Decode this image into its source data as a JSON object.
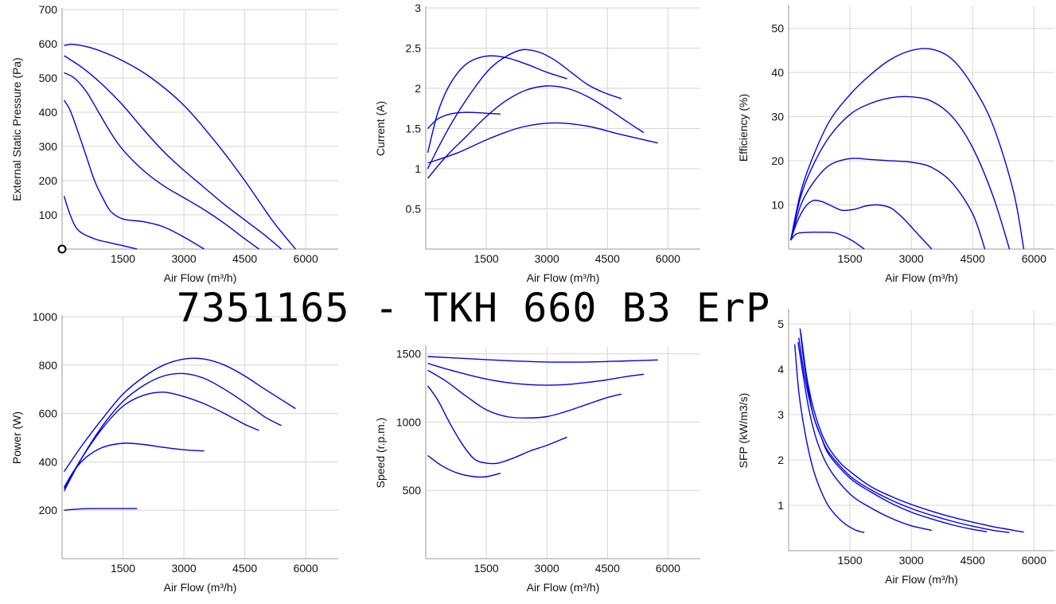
{
  "title": "7351165 - TKH 660 B3 ErP",
  "colors": {
    "curve": "#0000ee",
    "grid": "#d6d6d6",
    "axis": "#9a9a9a"
  },
  "chart_data": [
    {
      "id": "pressure",
      "type": "line",
      "xlabel": "Air Flow (m³/h)",
      "ylabel": "External Static Pressure (Pa)",
      "xlim": [
        0,
        6800
      ],
      "ylim": [
        0,
        700
      ],
      "xticks": [
        1500,
        3000,
        4500,
        6000
      ],
      "yticks": [
        100,
        200,
        300,
        400,
        500,
        600,
        700
      ],
      "series": [
        {
          "x": [
            50,
            300,
            800,
            1500,
            2200,
            3000,
            3800,
            4500,
            5200,
            5750
          ],
          "y": [
            595,
            598,
            585,
            550,
            500,
            420,
            310,
            200,
            80,
            0
          ]
        },
        {
          "x": [
            50,
            500,
            1000,
            1500,
            2000,
            2500,
            3000,
            3500,
            4000,
            4500,
            5000,
            5400
          ],
          "y": [
            565,
            530,
            480,
            420,
            350,
            285,
            230,
            180,
            130,
            85,
            40,
            0
          ]
        },
        {
          "x": [
            50,
            300,
            600,
            900,
            1200,
            1500,
            2000,
            2500,
            3000,
            3500,
            4000,
            4500,
            4850
          ],
          "y": [
            515,
            500,
            460,
            400,
            340,
            290,
            230,
            185,
            150,
            115,
            75,
            30,
            0
          ]
        },
        {
          "x": [
            50,
            200,
            400,
            600,
            800,
            1000,
            1200,
            1500,
            2000,
            2500,
            3000,
            3500
          ],
          "y": [
            435,
            405,
            340,
            270,
            200,
            150,
            110,
            88,
            80,
            65,
            35,
            0
          ]
        },
        {
          "x": [
            50,
            200,
            400,
            800,
            1200,
            1500,
            1850
          ],
          "y": [
            155,
            100,
            55,
            30,
            18,
            10,
            0
          ]
        }
      ]
    },
    {
      "id": "current",
      "type": "line",
      "xlabel": "Air Flow (m³/h)",
      "ylabel": "Current (A)",
      "xlim": [
        0,
        6800
      ],
      "ylim": [
        0,
        3
      ],
      "xticks": [
        1500,
        3000,
        4500,
        6000
      ],
      "yticks": [
        0.5,
        1,
        1.5,
        2,
        2.5,
        3
      ],
      "series": [
        {
          "x": [
            50,
            300,
            600,
            900,
            1200,
            1500,
            1850
          ],
          "y": [
            1.5,
            1.62,
            1.68,
            1.7,
            1.7,
            1.69,
            1.68
          ]
        },
        {
          "x": [
            50,
            300,
            600,
            1000,
            1500,
            2000,
            2500,
            3000,
            3500
          ],
          "y": [
            1.2,
            1.7,
            2.05,
            2.3,
            2.4,
            2.38,
            2.3,
            2.2,
            2.12
          ]
        },
        {
          "x": [
            50,
            400,
            800,
            1200,
            1600,
            2000,
            2400,
            2800,
            3200,
            3600,
            4000,
            4400,
            4850
          ],
          "y": [
            1.0,
            1.35,
            1.7,
            2.0,
            2.25,
            2.4,
            2.48,
            2.45,
            2.35,
            2.2,
            2.05,
            1.95,
            1.87
          ]
        },
        {
          "x": [
            50,
            500,
            1000,
            1500,
            2000,
            2500,
            3000,
            3500,
            4000,
            4500,
            5000,
            5400
          ],
          "y": [
            0.88,
            1.15,
            1.4,
            1.65,
            1.85,
            1.98,
            2.03,
            2.0,
            1.9,
            1.75,
            1.58,
            1.45
          ]
        },
        {
          "x": [
            50,
            800,
            1600,
            2400,
            3200,
            4000,
            4800,
            5750
          ],
          "y": [
            1.07,
            1.2,
            1.38,
            1.52,
            1.57,
            1.53,
            1.43,
            1.32
          ]
        }
      ]
    },
    {
      "id": "efficiency",
      "type": "line",
      "xlabel": "Air Flow (m³/h)",
      "ylabel": "Efficiency (%)",
      "xlim": [
        0,
        6500
      ],
      "ylim": [
        0,
        55
      ],
      "xticks": [
        1500,
        3000,
        4500,
        6000
      ],
      "yticks": [
        10,
        20,
        30,
        40,
        50
      ],
      "series": [
        {
          "x": [
            50,
            200,
            500,
            800,
            1000,
            1200,
            1500,
            1700,
            1850
          ],
          "y": [
            2,
            3.5,
            3.8,
            3.8,
            3.8,
            3.5,
            2.2,
            1,
            0
          ]
        },
        {
          "x": [
            50,
            200,
            400,
            600,
            800,
            1000,
            1300,
            1600,
            1900,
            2200,
            2500,
            2800,
            3200,
            3500
          ],
          "y": [
            2,
            6,
            9.5,
            11,
            10.8,
            10,
            8.8,
            9,
            9.8,
            10,
            9.3,
            7,
            3,
            0
          ]
        },
        {
          "x": [
            50,
            300,
            600,
            1000,
            1500,
            2000,
            2500,
            3000,
            3500,
            4000,
            4500,
            4800
          ],
          "y": [
            2,
            10,
            15,
            19,
            20.5,
            20.3,
            20,
            19.7,
            18.5,
            15,
            8,
            0
          ]
        },
        {
          "x": [
            50,
            300,
            600,
            1000,
            1500,
            2000,
            2500,
            3000,
            3500,
            4000,
            4500,
            5000,
            5400
          ],
          "y": [
            2,
            12,
            19,
            25.5,
            30.5,
            33,
            34.3,
            34.5,
            33.5,
            30,
            23,
            12,
            0
          ]
        },
        {
          "x": [
            50,
            300,
            600,
            1000,
            1500,
            2000,
            2500,
            3000,
            3500,
            4000,
            4500,
            5000,
            5500,
            5750
          ],
          "y": [
            2,
            13,
            21,
            29,
            35,
            39.5,
            43,
            45,
            45.3,
            43,
            37,
            28,
            13,
            0
          ]
        }
      ]
    },
    {
      "id": "power",
      "type": "line",
      "xlabel": "Air Flow (m³/h)",
      "ylabel": "Power (W)",
      "xlim": [
        0,
        6800
      ],
      "ylim": [
        0,
        1000
      ],
      "xticks": [
        1500,
        3000,
        4500,
        6000
      ],
      "yticks": [
        200,
        400,
        600,
        800,
        1000
      ],
      "series": [
        {
          "x": [
            50,
            400,
            800,
            1200,
            1500,
            1850
          ],
          "y": [
            200,
            205,
            207,
            207,
            207,
            207
          ]
        },
        {
          "x": [
            50,
            300,
            600,
            1000,
            1500,
            2000,
            2500,
            3000,
            3500
          ],
          "y": [
            295,
            365,
            420,
            460,
            477,
            472,
            460,
            450,
            445
          ]
        },
        {
          "x": [
            50,
            500,
            1000,
            1500,
            2000,
            2500,
            3000,
            3500,
            4000,
            4500,
            4850
          ],
          "y": [
            290,
            420,
            540,
            630,
            675,
            688,
            670,
            640,
            600,
            555,
            530
          ]
        },
        {
          "x": [
            50,
            500,
            1000,
            1500,
            2000,
            2500,
            3000,
            3500,
            4000,
            4500,
            5000,
            5400
          ],
          "y": [
            280,
            420,
            550,
            650,
            715,
            755,
            765,
            745,
            700,
            645,
            585,
            550
          ]
        },
        {
          "x": [
            50,
            500,
            1000,
            1500,
            2000,
            2500,
            3000,
            3500,
            4000,
            4500,
            5000,
            5750
          ],
          "y": [
            360,
            470,
            580,
            680,
            750,
            800,
            825,
            825,
            800,
            755,
            700,
            620
          ]
        }
      ]
    },
    {
      "id": "speed",
      "type": "line",
      "xlabel": "Air Flow (m³/h)",
      "ylabel": "Speed (r.p.m.)",
      "xlim": [
        0,
        6800
      ],
      "ylim": [
        0,
        1550
      ],
      "xticks": [
        1500,
        3000,
        4500,
        6000
      ],
      "yticks": [
        500,
        1000,
        1500
      ],
      "series": [
        {
          "x": [
            50,
            400,
            800,
            1200,
            1500,
            1850
          ],
          "y": [
            755,
            680,
            625,
            600,
            600,
            625
          ]
        },
        {
          "x": [
            50,
            300,
            600,
            900,
            1200,
            1500,
            1800,
            2200,
            2600,
            3000,
            3500
          ],
          "y": [
            1265,
            1160,
            990,
            840,
            730,
            700,
            700,
            740,
            790,
            830,
            890
          ]
        },
        {
          "x": [
            50,
            500,
            1000,
            1500,
            2000,
            2500,
            3000,
            3500,
            4000,
            4500,
            4850
          ],
          "y": [
            1380,
            1300,
            1190,
            1090,
            1040,
            1030,
            1040,
            1080,
            1130,
            1180,
            1205
          ]
        },
        {
          "x": [
            50,
            500,
            1000,
            1500,
            2000,
            2500,
            3000,
            3500,
            4000,
            4500,
            5000,
            5400
          ],
          "y": [
            1430,
            1390,
            1350,
            1315,
            1290,
            1275,
            1270,
            1275,
            1290,
            1310,
            1335,
            1350
          ]
        },
        {
          "x": [
            50,
            1000,
            2000,
            3000,
            4000,
            5000,
            5750
          ],
          "y": [
            1480,
            1465,
            1450,
            1440,
            1440,
            1448,
            1455
          ]
        }
      ]
    },
    {
      "id": "sfp",
      "type": "line",
      "xlabel": "Air Flow (m³/h)",
      "ylabel": "SFP (kW/m3/s)",
      "xlim": [
        0,
        6500
      ],
      "ylim": [
        0,
        5.3
      ],
      "xticks": [
        1500,
        3000,
        4500,
        6000
      ],
      "yticks": [
        1,
        2,
        3,
        4,
        5
      ],
      "series": [
        {
          "x": [
            150,
            250,
            400,
            600,
            800,
            1000,
            1300,
            1600,
            1850
          ],
          "y": [
            4.55,
            3.5,
            2.6,
            1.8,
            1.3,
            0.95,
            0.65,
            0.47,
            0.4
          ]
        },
        {
          "x": [
            230,
            350,
            500,
            700,
            1000,
            1500,
            2000,
            2500,
            3000,
            3500
          ],
          "y": [
            4.6,
            3.9,
            3.1,
            2.4,
            1.8,
            1.25,
            0.95,
            0.72,
            0.55,
            0.45
          ]
        },
        {
          "x": [
            280,
            400,
            600,
            800,
            1000,
            1500,
            2000,
            2500,
            3000,
            3500,
            4000,
            4500,
            4850
          ],
          "y": [
            4.9,
            4.0,
            3.0,
            2.5,
            2.1,
            1.6,
            1.3,
            1.05,
            0.85,
            0.7,
            0.57,
            0.47,
            0.42
          ]
        },
        {
          "x": [
            250,
            400,
            600,
            800,
            1000,
            1500,
            2000,
            2500,
            3000,
            3500,
            4000,
            4500,
            5000,
            5400
          ],
          "y": [
            4.7,
            3.8,
            3.0,
            2.5,
            2.15,
            1.65,
            1.35,
            1.12,
            0.93,
            0.78,
            0.65,
            0.54,
            0.45,
            0.4
          ]
        },
        {
          "x": [
            300,
            450,
            650,
            900,
            1200,
            1500,
            2000,
            2500,
            3000,
            3500,
            4000,
            4500,
            5000,
            5500,
            5750
          ],
          "y": [
            4.8,
            3.8,
            3.0,
            2.4,
            2.0,
            1.75,
            1.42,
            1.2,
            1.02,
            0.87,
            0.74,
            0.63,
            0.53,
            0.45,
            0.41
          ]
        }
      ]
    }
  ]
}
